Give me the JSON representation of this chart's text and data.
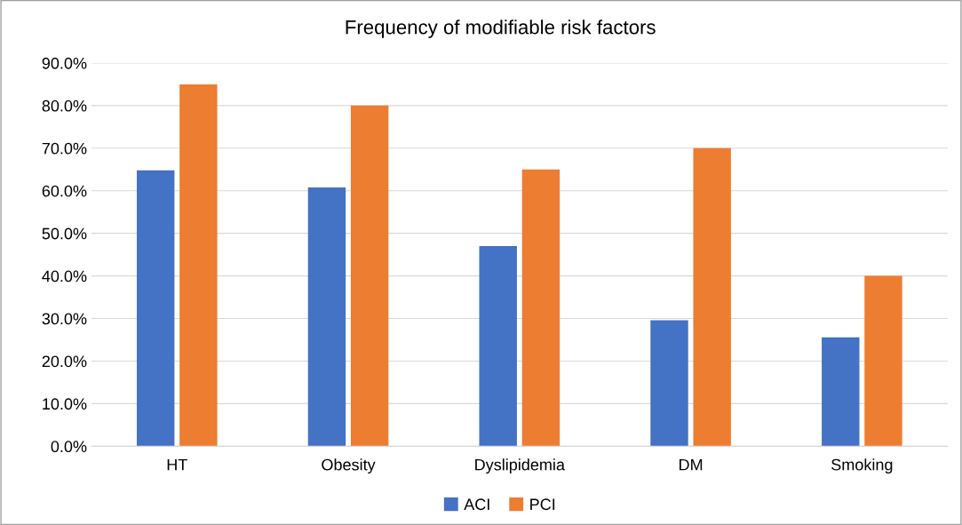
{
  "chart_data": {
    "type": "bar",
    "title": "Frequency of modifiable risk factors",
    "categories": [
      "HT",
      "Obesity",
      "Dyslipidemia",
      "DM",
      "Smoking"
    ],
    "series": [
      {
        "name": "ACI",
        "color": "#4472c4",
        "values": [
          64.8,
          60.8,
          47.0,
          29.6,
          25.6
        ]
      },
      {
        "name": "PCI",
        "color": "#ed7d31",
        "values": [
          85.0,
          80.0,
          65.0,
          70.0,
          40.0
        ]
      }
    ],
    "ylim": [
      0,
      90
    ],
    "yticks": [
      {
        "value": 0,
        "label": "0.0%"
      },
      {
        "value": 10,
        "label": "10.0%"
      },
      {
        "value": 20,
        "label": "20.0%"
      },
      {
        "value": 30,
        "label": "30.0%"
      },
      {
        "value": 40,
        "label": "40.0%"
      },
      {
        "value": 50,
        "label": "50.0%"
      },
      {
        "value": 60,
        "label": "60.0%"
      },
      {
        "value": 70,
        "label": "70.0%"
      },
      {
        "value": 80,
        "label": "80.0%"
      },
      {
        "value": 90,
        "label": "90.0%"
      }
    ],
    "grid": "y",
    "legend": "bottom"
  }
}
